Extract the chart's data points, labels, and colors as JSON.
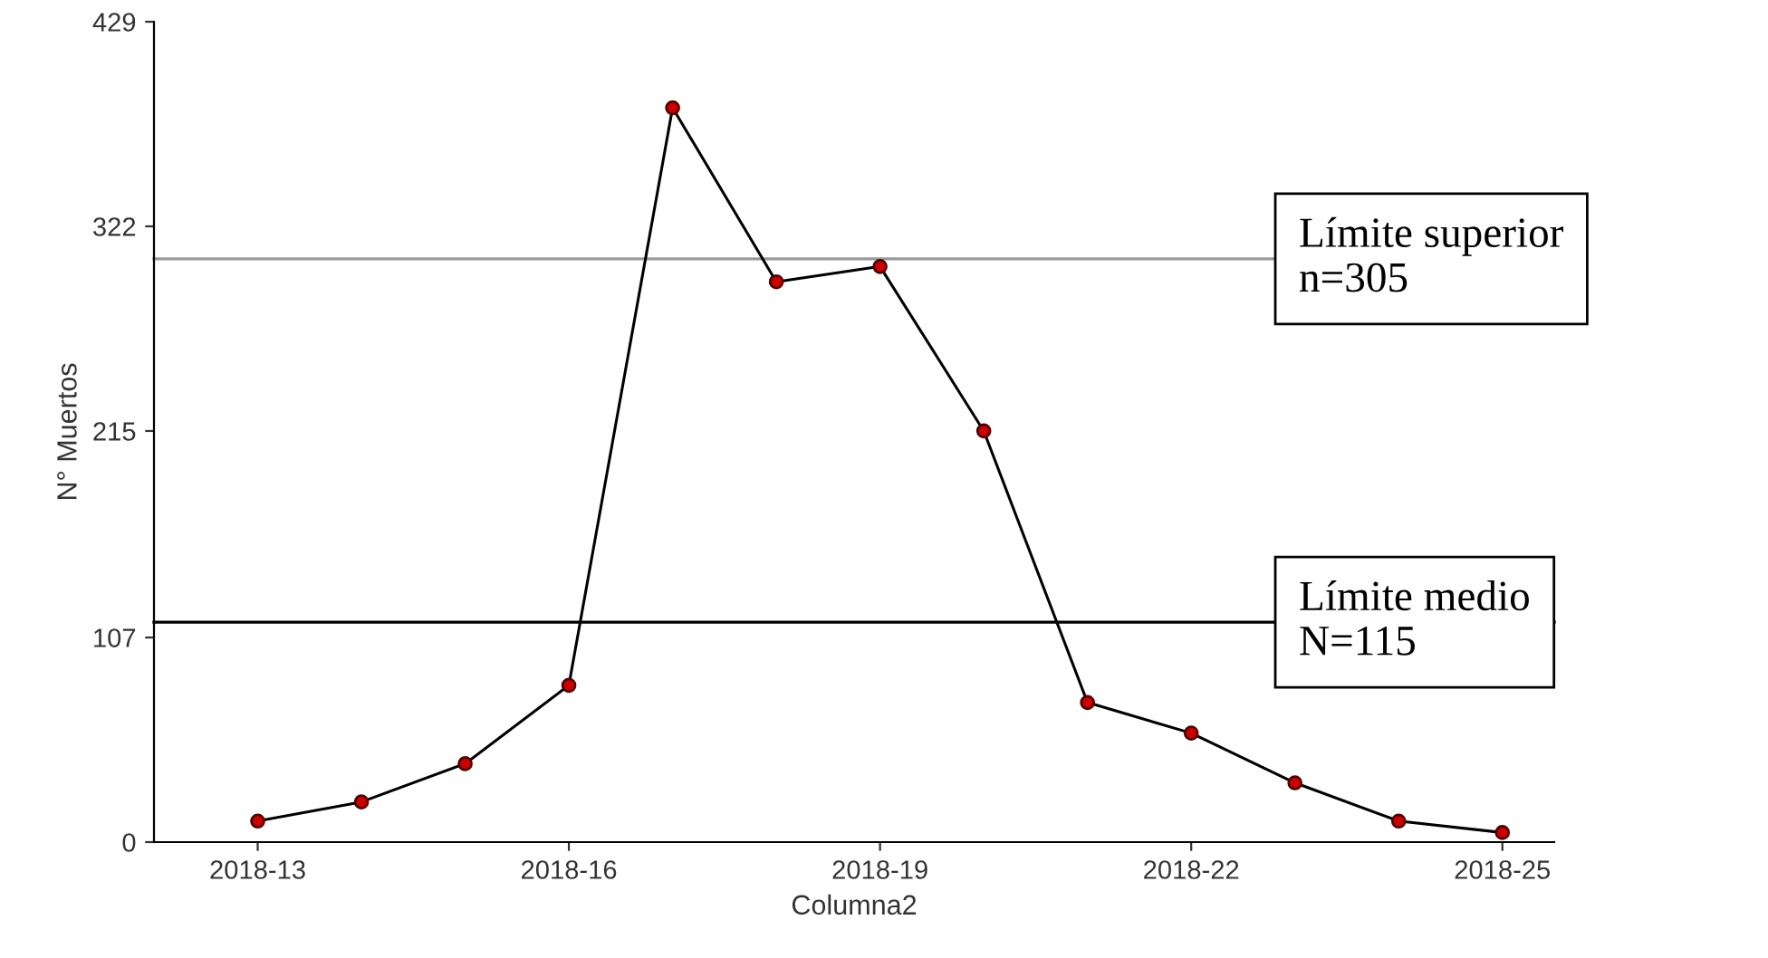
{
  "chart_data": {
    "type": "line",
    "xlabel": "Columna2",
    "ylabel": "N° Muertos",
    "categories": [
      "2018-13",
      null,
      null,
      "2018-16",
      null,
      null,
      "2018-19",
      null,
      null,
      "2018-22",
      null,
      null,
      "2018-25"
    ],
    "series": [
      {
        "color": "#000000",
        "values": [
          11,
          21,
          41,
          82,
          384,
          293,
          301,
          215,
          73,
          57,
          31,
          11,
          5
        ]
      }
    ],
    "marker": "circle",
    "line_style": "solid",
    "grid": false,
    "legend": false,
    "ylim": [
      0,
      429
    ],
    "yticks": [
      0,
      107,
      215,
      322,
      429
    ],
    "ref_lines": [
      {
        "axis": "y",
        "value": 305,
        "label": "Límite superior\nn=305",
        "color": "#999999",
        "line_style": "solid"
      },
      {
        "axis": "y",
        "value": 115,
        "label": "Límite medio\nN=115",
        "color": "#000000",
        "line_style": "solid"
      }
    ]
  }
}
